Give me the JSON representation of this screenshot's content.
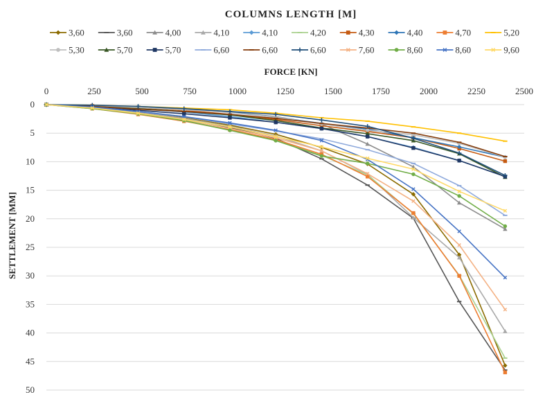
{
  "chart_data": {
    "type": "line",
    "title": "COLUMNS LENGTH [M]",
    "xlabel": "FORCE [KN]",
    "ylabel": "SETTLEMENT [MM]",
    "x_axis_position": "top",
    "y_axis_reversed": true,
    "xlim": [
      0,
      2500
    ],
    "ylim": [
      0,
      50
    ],
    "x_ticks": [
      "0",
      "250",
      "500",
      "750",
      "1000",
      "1250",
      "1500",
      "1750",
      "2000",
      "2250",
      "2500"
    ],
    "y_ticks": [
      "0",
      "5",
      "10",
      "15",
      "20",
      "25",
      "30",
      "35",
      "40",
      "45",
      "50"
    ],
    "grid": "horizontal",
    "legend_position": "top",
    "x": [
      0,
      240,
      480,
      720,
      960,
      1200,
      1440,
      1680,
      1920,
      2160,
      2400
    ],
    "series": [
      {
        "name": "3,60",
        "color": "#8B6B00",
        "marker": "diamond",
        "values": [
          0,
          0.5,
          1.3,
          2.3,
          3.6,
          5.2,
          7.5,
          10.4,
          15.7,
          26.3,
          45.7
        ]
      },
      {
        "name": "3,60",
        "color": "#555555",
        "marker": "dash",
        "values": [
          0,
          0.6,
          1.4,
          2.5,
          4.0,
          5.9,
          9.5,
          14.1,
          19.9,
          34.5,
          46.5
        ]
      },
      {
        "name": "4,00",
        "color": "#8C8C8C",
        "marker": "triangle",
        "values": [
          0,
          0.2,
          0.4,
          0.8,
          1.3,
          2.1,
          3.4,
          6.9,
          10.9,
          17.2,
          21.8
        ]
      },
      {
        "name": "4,10",
        "color": "#A9A9A9",
        "marker": "triangle",
        "values": [
          0,
          0.5,
          1.3,
          2.4,
          3.8,
          5.5,
          8.1,
          12.2,
          19.8,
          26.8,
          39.7
        ]
      },
      {
        "name": "4,10",
        "color": "#5B9BD5",
        "marker": "diamond",
        "values": [
          0,
          0.3,
          0.7,
          1.3,
          2.1,
          3.1,
          4.2,
          5.6,
          7.5,
          9.8,
          12.6
        ]
      },
      {
        "name": "4,20",
        "color": "#A9D18E",
        "marker": "dash",
        "values": [
          0,
          0.6,
          1.5,
          2.7,
          4.3,
          6.3,
          8.9,
          12.3,
          19.1,
          29.9,
          44.4
        ]
      },
      {
        "name": "4,30",
        "color": "#C55A11",
        "marker": "square",
        "values": [
          0,
          0.2,
          0.5,
          1.0,
          1.7,
          2.6,
          3.7,
          4.7,
          5.8,
          7.7,
          9.9
        ]
      },
      {
        "name": "4,40",
        "color": "#2E75B6",
        "marker": "diamond",
        "values": [
          0,
          0.2,
          0.4,
          0.8,
          1.3,
          2.2,
          3.3,
          4.3,
          5.8,
          7.4,
          9.2
        ]
      },
      {
        "name": "4,70",
        "color": "#ED7D31",
        "marker": "square",
        "values": [
          0,
          0.7,
          1.7,
          2.9,
          4.4,
          6.1,
          8.7,
          12.6,
          19.0,
          30.0,
          46.9
        ]
      },
      {
        "name": "5,20",
        "color": "#FFC000",
        "marker": "dash",
        "values": [
          0,
          0.1,
          0.3,
          0.6,
          0.9,
          1.5,
          2.3,
          2.9,
          3.9,
          5.0,
          6.4
        ]
      },
      {
        "name": "5,30",
        "color": "#BFBFBF",
        "marker": "circle",
        "values": [
          0,
          0.2,
          0.5,
          0.9,
          1.4,
          2.2,
          3.4,
          4.5,
          5.3,
          6.8,
          9.2
        ]
      },
      {
        "name": "5,70",
        "color": "#375623",
        "marker": "triangle",
        "values": [
          0,
          0.3,
          0.7,
          1.2,
          1.8,
          2.8,
          4.1,
          5.1,
          6.3,
          8.6,
          12.7
        ]
      },
      {
        "name": "5,70",
        "color": "#203864",
        "marker": "square",
        "values": [
          0,
          0.4,
          1.0,
          1.6,
          2.3,
          3.1,
          4.2,
          5.6,
          7.6,
          9.8,
          12.6
        ]
      },
      {
        "name": "6,60",
        "color": "#8FAADC",
        "marker": "dash",
        "values": [
          0,
          0.4,
          1.2,
          2.1,
          3.4,
          4.6,
          6.0,
          7.9,
          10.3,
          14.2,
          19.4
        ]
      },
      {
        "name": "6,60",
        "color": "#843C0C",
        "marker": "dash",
        "values": [
          0,
          0.3,
          0.8,
          1.2,
          1.7,
          2.4,
          3.3,
          4.1,
          5.0,
          6.6,
          9.1
        ]
      },
      {
        "name": "6,60",
        "color": "#1F4E79",
        "marker": "plus",
        "values": [
          0,
          0.1,
          0.3,
          0.7,
          1.2,
          1.7,
          2.7,
          3.8,
          5.9,
          8.5,
          12.4
        ]
      },
      {
        "name": "7,60",
        "color": "#F4B183",
        "marker": "x",
        "values": [
          0,
          0.6,
          1.6,
          2.8,
          4.2,
          5.8,
          8.1,
          12.1,
          16.9,
          24.6,
          35.9
        ]
      },
      {
        "name": "8,60",
        "color": "#70AD47",
        "marker": "circle",
        "values": [
          0,
          0.7,
          1.6,
          2.8,
          4.5,
          6.3,
          9.0,
          10.3,
          12.2,
          16.0,
          21.3
        ]
      },
      {
        "name": "8,60",
        "color": "#4472C4",
        "marker": "x",
        "values": [
          0,
          0.4,
          1.2,
          2.1,
          3.2,
          4.5,
          6.3,
          9.6,
          14.8,
          22.2,
          30.3
        ]
      },
      {
        "name": "9,60",
        "color": "#FFD966",
        "marker": "x",
        "values": [
          0,
          0.6,
          1.5,
          2.6,
          3.9,
          5.6,
          7.4,
          9.4,
          11.3,
          15.2,
          18.6
        ]
      }
    ]
  }
}
